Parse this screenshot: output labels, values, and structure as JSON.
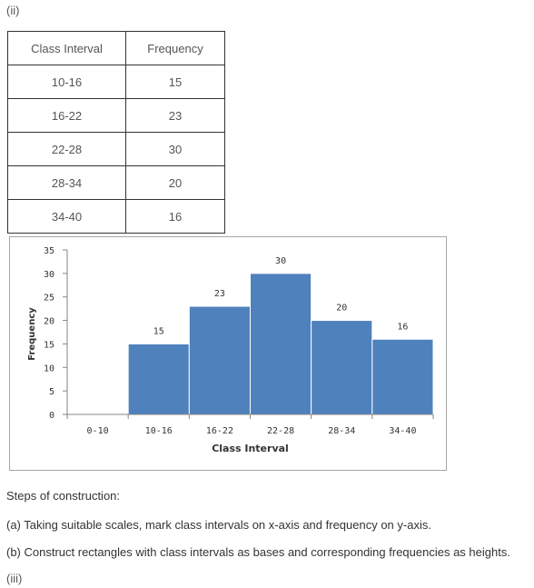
{
  "part_ii_label": "(ii)",
  "part_iii_label": "(iii)",
  "table": {
    "headers": [
      "Class Interval",
      "Frequency"
    ],
    "rows": [
      [
        "10-16",
        "15"
      ],
      [
        "16-22",
        "23"
      ],
      [
        "22-28",
        "30"
      ],
      [
        "28-34",
        "20"
      ],
      [
        "34-40",
        "16"
      ]
    ]
  },
  "chart_data": {
    "type": "bar",
    "categories": [
      "0-10",
      "10-16",
      "16-22",
      "22-28",
      "28-34",
      "34-40"
    ],
    "values": [
      0,
      15,
      23,
      30,
      20,
      16
    ],
    "data_labels": [
      "",
      "15",
      "23",
      "30",
      "20",
      "16"
    ],
    "xlabel": "Class Interval",
    "ylabel": "Frequency",
    "ylim": [
      0,
      35
    ],
    "yticks": [
      0,
      5,
      10,
      15,
      20,
      25,
      30,
      35
    ],
    "bar_color": "#4f81bd",
    "grid": false,
    "legend": "none"
  },
  "steps": {
    "heading": "Steps of construction:",
    "a": "(a) Taking suitable scales, mark class intervals on x-axis and frequency on y-axis.",
    "b": "(b) Construct rectangles with class intervals as bases and corresponding frequencies as heights."
  }
}
